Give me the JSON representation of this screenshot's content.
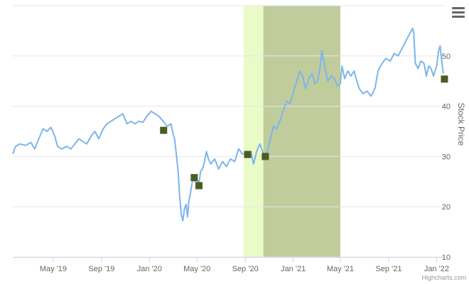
{
  "menu": {
    "icon": "hamburger-menu-icon"
  },
  "credits": "Highcharts.com",
  "chart_data": {
    "type": "line",
    "title": "",
    "ylabel": "Stock Price",
    "ylim": [
      10,
      60
    ],
    "y_ticks": [
      10,
      20,
      30,
      40,
      50
    ],
    "xlim": [
      "2019-01-18",
      "2022-01-22"
    ],
    "x_ticks": [
      {
        "date": "2019-05-01",
        "label": "May '19"
      },
      {
        "date": "2019-09-01",
        "label": "Sep '19"
      },
      {
        "date": "2020-01-01",
        "label": "Jan '20"
      },
      {
        "date": "2020-05-01",
        "label": "May '20"
      },
      {
        "date": "2020-09-01",
        "label": "Sep '20"
      },
      {
        "date": "2021-01-01",
        "label": "Jan '21"
      },
      {
        "date": "2021-05-01",
        "label": "May '21"
      },
      {
        "date": "2021-09-01",
        "label": "Sep '21"
      },
      {
        "date": "2022-01-01",
        "label": "Jan '22"
      }
    ],
    "grid": true,
    "colors": {
      "line": "#7cb5ec",
      "marker": "#4a5e23",
      "band_light": "#eafbc7",
      "band_dark": "#c0cc9c",
      "grid": "#e6e6e6",
      "axis_text": "#666666"
    },
    "bands": [
      {
        "from": "2020-08-28",
        "to": "2020-10-17",
        "color": "#eafbc7"
      },
      {
        "from": "2020-10-17",
        "to": "2021-05-01",
        "color": "#c0cc9c"
      }
    ],
    "series": [
      {
        "points": [
          [
            "2019-01-18",
            30.5
          ],
          [
            "2019-01-25",
            32.0
          ],
          [
            "2019-02-05",
            32.5
          ],
          [
            "2019-02-20",
            32.2
          ],
          [
            "2019-03-05",
            32.8
          ],
          [
            "2019-03-15",
            31.5
          ],
          [
            "2019-03-25",
            33.5
          ],
          [
            "2019-04-05",
            35.5
          ],
          [
            "2019-04-15",
            35.0
          ],
          [
            "2019-04-25",
            35.8
          ],
          [
            "2019-05-05",
            34.0
          ],
          [
            "2019-05-12",
            32.0
          ],
          [
            "2019-05-22",
            31.5
          ],
          [
            "2019-06-05",
            32.0
          ],
          [
            "2019-06-15",
            31.5
          ],
          [
            "2019-06-25",
            32.5
          ],
          [
            "2019-07-05",
            33.5
          ],
          [
            "2019-07-15",
            33.0
          ],
          [
            "2019-07-25",
            32.5
          ],
          [
            "2019-08-05",
            34.0
          ],
          [
            "2019-08-15",
            35.0
          ],
          [
            "2019-08-25",
            33.5
          ],
          [
            "2019-09-05",
            35.5
          ],
          [
            "2019-09-15",
            36.5
          ],
          [
            "2019-09-25",
            37.0
          ],
          [
            "2019-10-05",
            37.5
          ],
          [
            "2019-10-15",
            38.0
          ],
          [
            "2019-10-25",
            38.5
          ],
          [
            "2019-11-05",
            36.5
          ],
          [
            "2019-11-15",
            37.0
          ],
          [
            "2019-11-25",
            36.5
          ],
          [
            "2019-12-05",
            37.0
          ],
          [
            "2019-12-15",
            36.8
          ],
          [
            "2019-12-25",
            38.0
          ],
          [
            "2020-01-05",
            39.0
          ],
          [
            "2020-01-15",
            38.5
          ],
          [
            "2020-01-25",
            38.0
          ],
          [
            "2020-02-05",
            37.0
          ],
          [
            "2020-02-15",
            36.0
          ],
          [
            "2020-02-25",
            36.5
          ],
          [
            "2020-03-01",
            34.5
          ],
          [
            "2020-03-05",
            33.5
          ],
          [
            "2020-03-10",
            30.0
          ],
          [
            "2020-03-14",
            27.0
          ],
          [
            "2020-03-18",
            22.0
          ],
          [
            "2020-03-22",
            18.5
          ],
          [
            "2020-03-26",
            17.2
          ],
          [
            "2020-03-30",
            19.5
          ],
          [
            "2020-04-03",
            20.5
          ],
          [
            "2020-04-07",
            18.0
          ],
          [
            "2020-04-10",
            21.0
          ],
          [
            "2020-04-14",
            22.5
          ],
          [
            "2020-04-18",
            24.5
          ],
          [
            "2020-04-22",
            26.0
          ],
          [
            "2020-04-26",
            25.0
          ],
          [
            "2020-05-01",
            25.5
          ],
          [
            "2020-05-06",
            24.5
          ],
          [
            "2020-05-10",
            27.0
          ],
          [
            "2020-05-15",
            27.5
          ],
          [
            "2020-05-20",
            29.0
          ],
          [
            "2020-05-25",
            31.0
          ],
          [
            "2020-05-30",
            29.5
          ],
          [
            "2020-06-05",
            28.5
          ],
          [
            "2020-06-15",
            29.5
          ],
          [
            "2020-06-25",
            27.5
          ],
          [
            "2020-07-05",
            29.0
          ],
          [
            "2020-07-15",
            28.0
          ],
          [
            "2020-07-25",
            29.5
          ],
          [
            "2020-08-05",
            29.0
          ],
          [
            "2020-08-15",
            31.5
          ],
          [
            "2020-08-25",
            30.5
          ],
          [
            "2020-09-01",
            30.5
          ],
          [
            "2020-09-08",
            29.8
          ],
          [
            "2020-09-15",
            31.0
          ],
          [
            "2020-09-22",
            28.5
          ],
          [
            "2020-09-30",
            31.0
          ],
          [
            "2020-10-08",
            32.5
          ],
          [
            "2020-10-15",
            31.0
          ],
          [
            "2020-10-22",
            30.0
          ],
          [
            "2020-10-29",
            31.5
          ],
          [
            "2020-11-05",
            34.0
          ],
          [
            "2020-11-12",
            36.0
          ],
          [
            "2020-11-20",
            35.5
          ],
          [
            "2020-11-30",
            37.5
          ],
          [
            "2020-12-08",
            39.5
          ],
          [
            "2020-12-16",
            41.0
          ],
          [
            "2020-12-24",
            40.5
          ],
          [
            "2021-01-02",
            43.0
          ],
          [
            "2021-01-10",
            45.0
          ],
          [
            "2021-01-18",
            47.0
          ],
          [
            "2021-01-25",
            46.0
          ],
          [
            "2021-02-01",
            43.5
          ],
          [
            "2021-02-10",
            45.5
          ],
          [
            "2021-02-18",
            46.5
          ],
          [
            "2021-02-25",
            44.5
          ],
          [
            "2021-03-04",
            45.0
          ],
          [
            "2021-03-10",
            47.5
          ],
          [
            "2021-03-15",
            51.0
          ],
          [
            "2021-03-22",
            48.0
          ],
          [
            "2021-03-30",
            45.0
          ],
          [
            "2021-04-08",
            46.0
          ],
          [
            "2021-04-16",
            45.5
          ],
          [
            "2021-04-24",
            44.0
          ],
          [
            "2021-05-01",
            44.5
          ],
          [
            "2021-05-05",
            48.0
          ],
          [
            "2021-05-12",
            45.5
          ],
          [
            "2021-05-20",
            47.0
          ],
          [
            "2021-05-28",
            46.0
          ],
          [
            "2021-06-05",
            47.0
          ],
          [
            "2021-06-12",
            45.0
          ],
          [
            "2021-06-18",
            43.5
          ],
          [
            "2021-06-28",
            42.5
          ],
          [
            "2021-07-08",
            43.0
          ],
          [
            "2021-07-18",
            42.0
          ],
          [
            "2021-07-28",
            43.5
          ],
          [
            "2021-08-05",
            47.0
          ],
          [
            "2021-08-15",
            48.5
          ],
          [
            "2021-08-25",
            49.5
          ],
          [
            "2021-09-05",
            49.0
          ],
          [
            "2021-09-15",
            50.5
          ],
          [
            "2021-09-25",
            50.0
          ],
          [
            "2021-10-05",
            51.5
          ],
          [
            "2021-10-15",
            53.0
          ],
          [
            "2021-10-25",
            54.5
          ],
          [
            "2021-11-01",
            55.5
          ],
          [
            "2021-11-04",
            54.5
          ],
          [
            "2021-11-08",
            48.5
          ],
          [
            "2021-11-15",
            47.5
          ],
          [
            "2021-11-22",
            49.0
          ],
          [
            "2021-11-30",
            48.5
          ],
          [
            "2021-12-06",
            46.0
          ],
          [
            "2021-12-12",
            48.0
          ],
          [
            "2021-12-18",
            47.5
          ],
          [
            "2021-12-24",
            46.0
          ],
          [
            "2022-01-01",
            48.0
          ],
          [
            "2022-01-06",
            51.0
          ],
          [
            "2022-01-10",
            52.0
          ],
          [
            "2022-01-14",
            49.0
          ],
          [
            "2022-01-18",
            46.5
          ]
        ]
      },
      {
        "type": "scatter",
        "points": [
          [
            "2020-02-06",
            35.2
          ],
          [
            "2020-04-24",
            25.8
          ],
          [
            "2020-05-06",
            24.2
          ],
          [
            "2020-09-07",
            30.4
          ],
          [
            "2020-10-22",
            30.0
          ],
          [
            "2022-01-21",
            45.4
          ]
        ]
      }
    ]
  }
}
